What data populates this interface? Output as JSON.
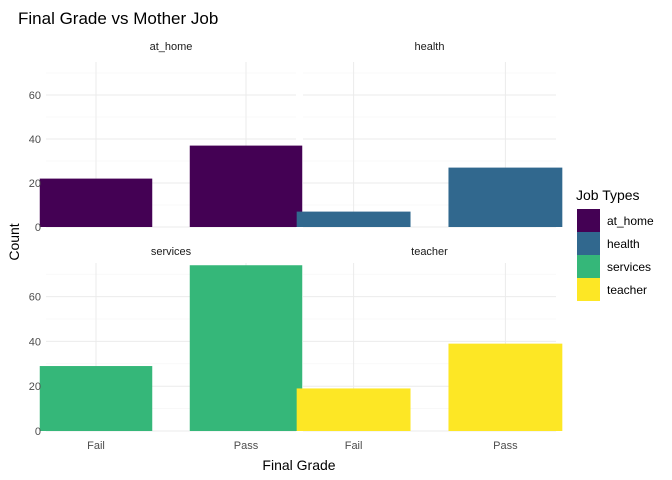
{
  "chart_data": {
    "type": "bar",
    "title": "Final Grade vs Mother Job",
    "xlabel": "Final Grade",
    "ylabel": "Count",
    "categories": [
      "Fail",
      "Pass"
    ],
    "ylim": [
      0,
      75
    ],
    "yticks": [
      0,
      20,
      40,
      60
    ],
    "grid": true,
    "facets": [
      {
        "label": "at_home",
        "color": "#440154",
        "values": [
          22,
          37
        ]
      },
      {
        "label": "health",
        "color": "#31688E",
        "values": [
          7,
          27
        ]
      },
      {
        "label": "services",
        "color": "#35B779",
        "values": [
          29,
          74
        ]
      },
      {
        "label": "teacher",
        "color": "#FDE725",
        "values": [
          19,
          39
        ]
      }
    ],
    "legend": {
      "title": "Job Types",
      "position": "right",
      "items": [
        {
          "label": "at_home",
          "color": "#440154"
        },
        {
          "label": "health",
          "color": "#31688E"
        },
        {
          "label": "services",
          "color": "#35B779"
        },
        {
          "label": "teacher",
          "color": "#FDE725"
        }
      ]
    }
  }
}
